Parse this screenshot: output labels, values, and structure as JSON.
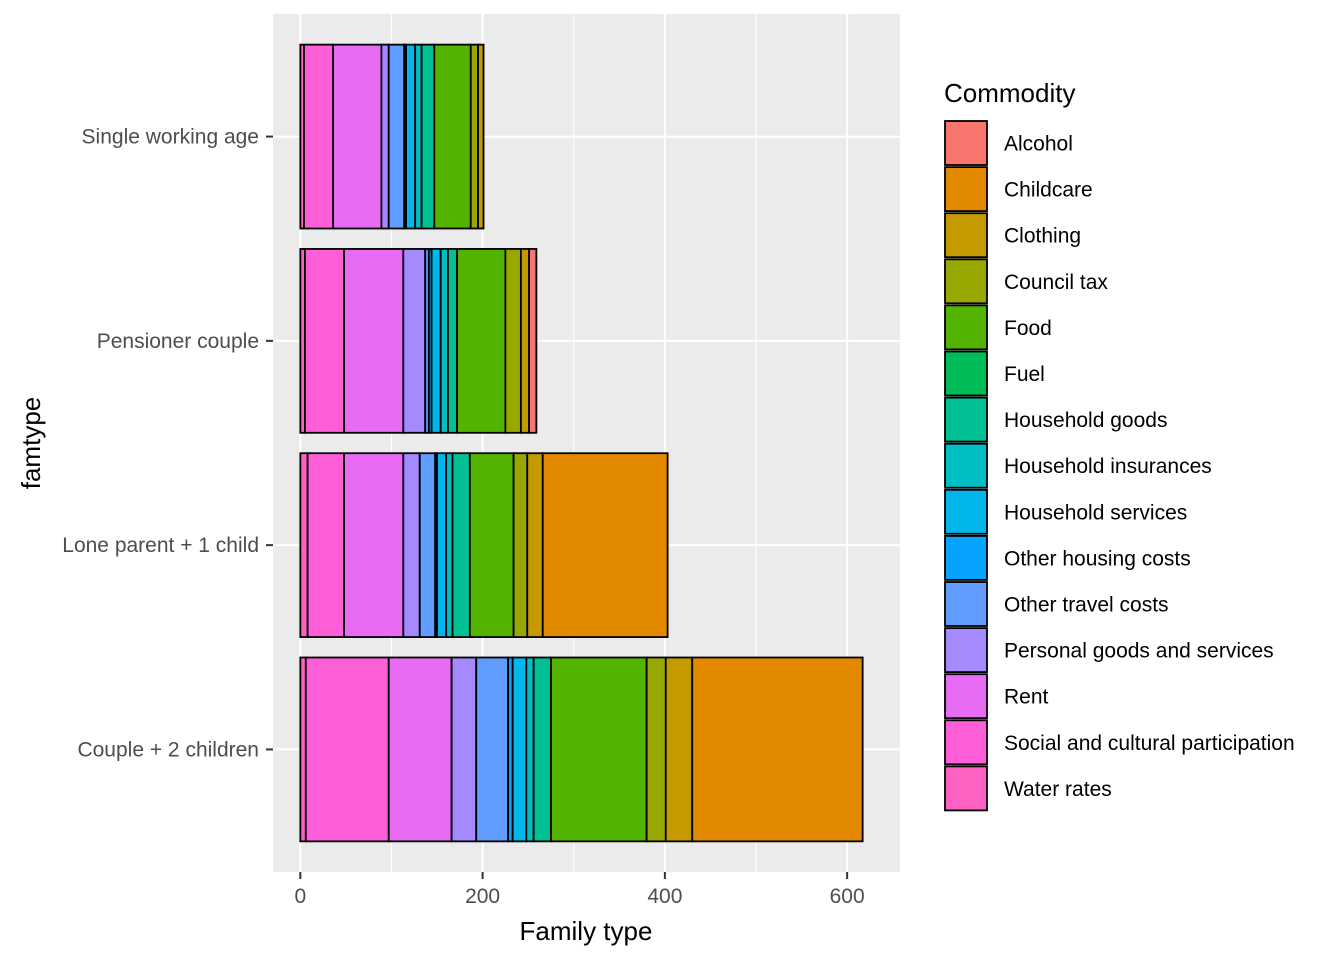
{
  "chart_data": {
    "type": "bar",
    "orientation": "horizontal",
    "stacked": true,
    "xlabel": "Family type",
    "ylabel": "famtype",
    "xlim": [
      -30,
      658
    ],
    "x_ticks": [
      0,
      200,
      400,
      600
    ],
    "grid": true,
    "categories": [
      "Single working age",
      "Pensioner couple",
      "Lone parent + 1 child",
      "Couple + 2 children"
    ],
    "legend": {
      "title": "Commodity",
      "position": "right",
      "items": [
        "Alcohol",
        "Childcare",
        "Clothing",
        "Council tax",
        "Food",
        "Fuel",
        "Household goods",
        "Household insurances",
        "Household services",
        "Other housing costs",
        "Other travel costs",
        "Personal goods and services",
        "Rent",
        "Social and cultural participation",
        "Water rates"
      ]
    },
    "series": [
      {
        "name": "Alcohol",
        "color": "#F8766D",
        "values": [
          0,
          8,
          0,
          0
        ]
      },
      {
        "name": "Childcare",
        "color": "#E38900",
        "values": [
          0,
          0,
          137,
          187
        ]
      },
      {
        "name": "Clothing",
        "color": "#C49A00",
        "values": [
          6,
          9,
          17,
          29
        ]
      },
      {
        "name": "Council tax",
        "color": "#99A800",
        "values": [
          8,
          17,
          15,
          21
        ]
      },
      {
        "name": "Food",
        "color": "#53B400",
        "values": [
          40,
          53,
          48,
          105
        ]
      },
      {
        "name": "Fuel",
        "color": "#00BC56",
        "values": [
          0,
          0,
          0,
          0
        ]
      },
      {
        "name": "Household goods",
        "color": "#00C094",
        "values": [
          14,
          10,
          19,
          19
        ]
      },
      {
        "name": "Household insurances",
        "color": "#00BFC4",
        "values": [
          7,
          8,
          7,
          8
        ]
      },
      {
        "name": "Household services",
        "color": "#00B6EB",
        "values": [
          10,
          10,
          10,
          15
        ]
      },
      {
        "name": "Other housing costs",
        "color": "#06A4FF",
        "values": [
          2,
          3,
          2,
          5
        ]
      },
      {
        "name": "Other travel costs",
        "color": "#619CFF",
        "values": [
          17,
          4,
          17,
          35
        ]
      },
      {
        "name": "Personal goods and services",
        "color": "#A58AFF",
        "values": [
          8,
          24,
          18,
          27
        ]
      },
      {
        "name": "Rent",
        "color": "#E76BF3",
        "values": [
          53,
          65,
          65,
          69
        ]
      },
      {
        "name": "Social and cultural participation",
        "color": "#FF5ED9",
        "values": [
          32,
          43,
          40,
          91
        ]
      },
      {
        "name": "Water rates",
        "color": "#FF61C3",
        "values": [
          4,
          5,
          8,
          6
        ]
      }
    ]
  }
}
